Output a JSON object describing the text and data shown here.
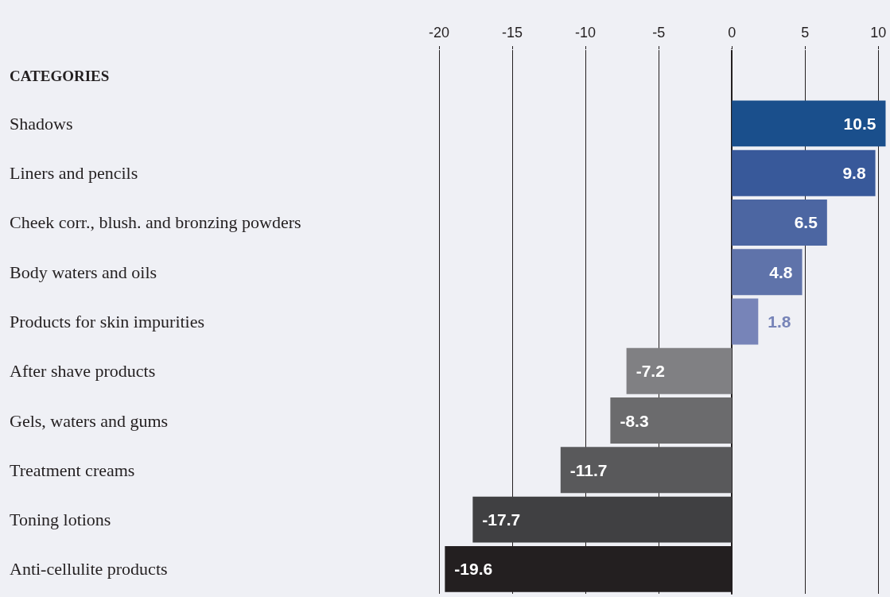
{
  "chart_data": {
    "type": "bar",
    "orientation": "horizontal",
    "ylabel": "CATEGORIES",
    "categories": [
      "Shadows",
      "Liners and pencils",
      "Cheek corr., blush. and bronzing powders",
      "Body waters and oils",
      "Products for skin impurities",
      "After shave products",
      "Gels, waters and gums",
      "Treatment creams",
      "Toning lotions",
      "Anti-cellulite products"
    ],
    "values": [
      10.5,
      9.8,
      6.5,
      4.8,
      1.8,
      -7.2,
      -8.3,
      -11.7,
      -17.7,
      -19.6
    ],
    "colors": [
      "#1a4f8c",
      "#38599a",
      "#4c66a2",
      "#5f73aa",
      "#7784b8",
      "#808083",
      "#6b6b6d",
      "#59595b",
      "#404042",
      "#231f20"
    ],
    "x2lim": [
      -20,
      10.8
    ],
    "x2ticks": [
      -20,
      -15,
      -10,
      -5,
      0,
      5,
      10
    ],
    "grid": "x",
    "data_labels": true
  }
}
